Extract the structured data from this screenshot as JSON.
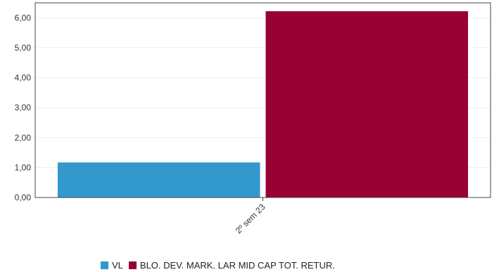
{
  "chart_data": {
    "type": "bar",
    "categories": [
      "2º sem 23"
    ],
    "series": [
      {
        "name": "VL",
        "values": [
          1.17
        ],
        "color": "#3399CC"
      },
      {
        "name": "BLO. DEV. MARK. LAR MID CAP TOT. RETUR.",
        "values": [
          6.22
        ],
        "color": "#990033"
      }
    ],
    "ylim": [
      0,
      6.5
    ],
    "yticks": [
      "0,00",
      "1,00",
      "2,00",
      "3,00",
      "4,00",
      "5,00",
      "6,00"
    ],
    "grid": true,
    "legend_position": "bottom"
  }
}
